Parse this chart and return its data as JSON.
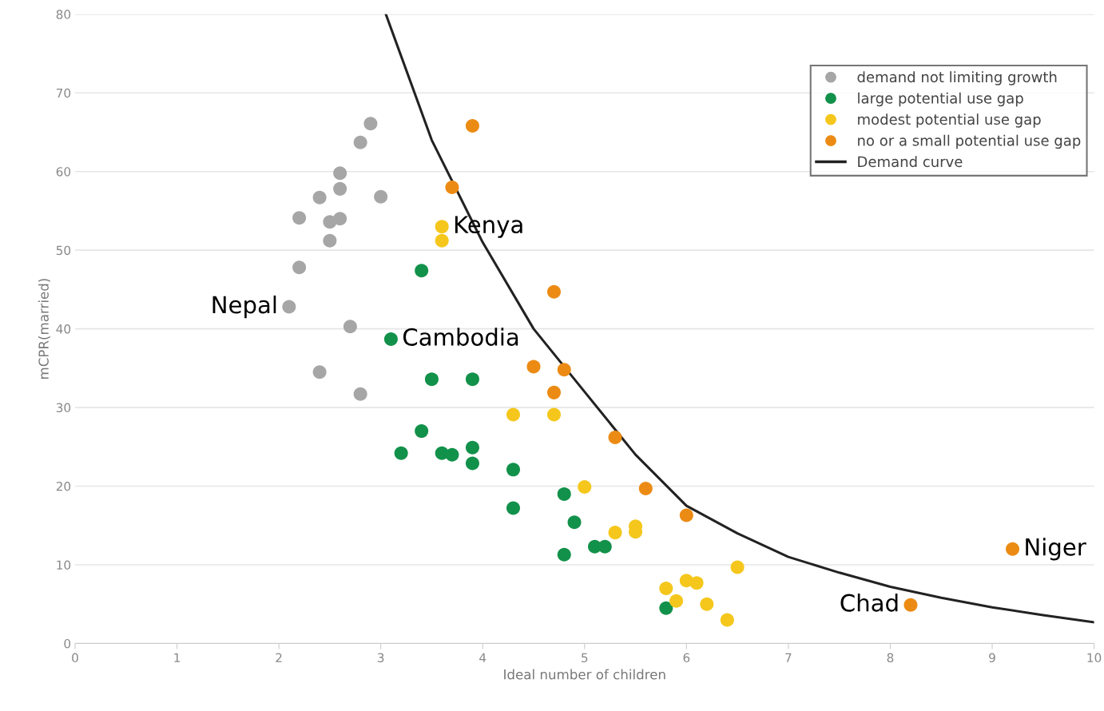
{
  "chart_data": {
    "type": "scatter",
    "xlabel": "Ideal number of children",
    "ylabel": "mCPR(married)",
    "xlim": [
      0,
      10
    ],
    "ylim": [
      0,
      80
    ],
    "xticks": [
      0,
      1,
      2,
      3,
      4,
      5,
      6,
      7,
      8,
      9,
      10
    ],
    "yticks": [
      0,
      10,
      20,
      30,
      40,
      50,
      60,
      70,
      80
    ],
    "grid": "y",
    "legend": "top right",
    "marker": "circle",
    "series": [
      {
        "name": "demand not limiting growth",
        "color": "#a6a6a6",
        "x": [
          2.1,
          2.9,
          2.8,
          2.6,
          2.6,
          2.4,
          3.0,
          2.2,
          2.6,
          2.5,
          2.5,
          2.2,
          2.7,
          2.4,
          2.8
        ],
        "values": [
          42.8,
          66.1,
          63.7,
          59.8,
          57.8,
          56.7,
          56.8,
          54.1,
          54.0,
          53.6,
          51.2,
          47.8,
          40.3,
          34.5,
          31.7
        ]
      },
      {
        "name": "large potential use gap",
        "color": "#12914a",
        "x": [
          3.4,
          3.1,
          3.5,
          3.9,
          3.4,
          3.2,
          3.6,
          3.7,
          3.9,
          3.9,
          4.3,
          4.3,
          4.8,
          4.9,
          4.8,
          5.1,
          5.2,
          5.8
        ],
        "values": [
          47.4,
          38.7,
          33.6,
          33.6,
          27.0,
          24.2,
          24.2,
          24.0,
          24.9,
          22.9,
          22.1,
          17.2,
          19.0,
          15.4,
          11.3,
          12.3,
          12.3,
          4.5
        ]
      },
      {
        "name": "modest potential use gap",
        "color": "#f5c71c",
        "x": [
          3.6,
          3.6,
          4.3,
          4.7,
          5.0,
          5.3,
          5.5,
          5.5,
          6.5,
          5.8,
          6.0,
          6.1,
          5.9,
          6.2,
          6.4
        ],
        "values": [
          53.0,
          51.2,
          29.1,
          29.1,
          19.9,
          14.1,
          14.9,
          14.2,
          9.7,
          7.0,
          8.0,
          7.7,
          5.4,
          5.0,
          3.0
        ]
      },
      {
        "name": "no or a small potential use gap",
        "color": "#ec8b14",
        "x": [
          3.9,
          3.7,
          4.7,
          4.5,
          4.8,
          4.7,
          5.3,
          5.6,
          6.0,
          8.2,
          9.2
        ],
        "values": [
          65.8,
          58.0,
          44.7,
          35.2,
          34.8,
          31.9,
          26.2,
          19.7,
          16.3,
          4.9,
          12.0
        ]
      },
      {
        "name": "Demand curve",
        "type": "line",
        "marker": "none",
        "color": "#222222",
        "x": [
          3.05,
          3.5,
          4.0,
          4.5,
          5.0,
          5.5,
          6.0,
          6.5,
          7.0,
          7.5,
          8.0,
          8.5,
          9.0,
          9.5,
          10.0
        ],
        "values": [
          80,
          64,
          51,
          40,
          32,
          24,
          17.5,
          14,
          11,
          9,
          7.2,
          5.8,
          4.6,
          3.6,
          2.7
        ]
      }
    ],
    "annotations": [
      {
        "text": "Kenya",
        "x": 3.6,
        "y": 53.0
      },
      {
        "text": "Nepal",
        "x": 2.1,
        "y": 42.8
      },
      {
        "text": "Cambodia",
        "x": 3.1,
        "y": 38.7
      },
      {
        "text": "Chad",
        "x": 8.2,
        "y": 4.9
      },
      {
        "text": "Niger",
        "x": 9.2,
        "y": 12.0
      }
    ]
  }
}
